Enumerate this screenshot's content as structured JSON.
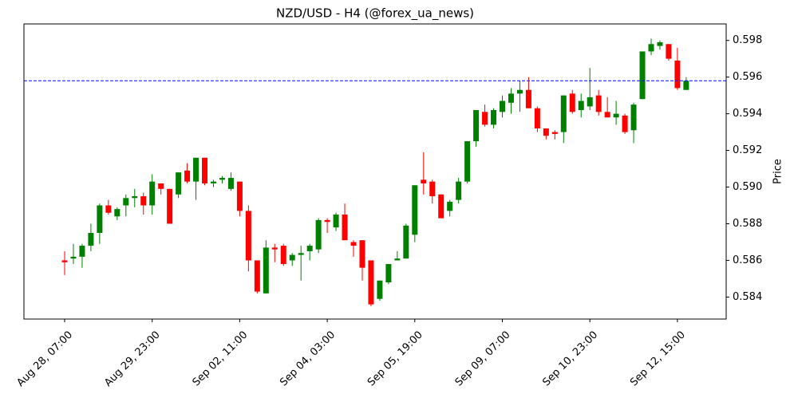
{
  "chart_data": {
    "type": "candlestick",
    "title": "NZD/USD - H4 (@forex_ua_news)",
    "y_label": "Price",
    "categories": [
      "Aug 28, 07:00",
      null,
      null,
      null,
      null,
      null,
      null,
      null,
      null,
      null,
      "Aug 29, 23:00",
      null,
      null,
      null,
      null,
      null,
      null,
      null,
      null,
      null,
      "Sep 02, 11:00",
      null,
      null,
      null,
      null,
      null,
      null,
      null,
      null,
      null,
      "Sep 04, 03:00",
      null,
      null,
      null,
      null,
      null,
      null,
      null,
      null,
      null,
      "Sep 05, 19:00",
      null,
      null,
      null,
      null,
      null,
      null,
      null,
      null,
      null,
      "Sep 09, 07:00",
      null,
      null,
      null,
      null,
      null,
      null,
      null,
      null,
      null,
      "Sep 10, 23:00",
      null,
      null,
      null,
      null,
      null,
      null,
      null,
      null,
      null,
      "Sep 12, 15:00",
      null
    ],
    "open": [
      0.586,
      0.5861,
      0.5862,
      0.5868,
      0.5875,
      0.589,
      0.5884,
      0.589,
      0.5894,
      0.5895,
      0.589,
      0.5902,
      0.5899,
      0.5896,
      0.5909,
      0.5903,
      0.5916,
      0.5902,
      0.5904,
      0.5899,
      0.5903,
      0.5887,
      0.586,
      0.5842,
      0.5867,
      0.5868,
      0.586,
      0.5863,
      0.5865,
      0.5866,
      0.5882,
      0.5878,
      0.5885,
      0.587,
      0.5871,
      0.586,
      0.5839,
      0.5848,
      0.586,
      0.5861,
      0.5874,
      0.5904,
      0.5903,
      0.5896,
      0.5887,
      0.5893,
      0.5903,
      0.5925,
      0.5941,
      0.5934,
      0.5941,
      0.5946,
      0.5951,
      0.5953,
      0.5943,
      0.5932,
      0.593,
      0.593,
      0.5951,
      0.5942,
      0.5944,
      0.595,
      0.5941,
      0.5938,
      0.5939,
      0.5931,
      0.5948,
      0.5974,
      0.5977,
      0.5978,
      0.5969,
      0.5953
    ],
    "high": [
      0.5865,
      0.5869,
      0.5869,
      0.588,
      0.5891,
      0.5893,
      0.5889,
      0.5896,
      0.5899,
      0.5897,
      0.5907,
      0.5902,
      0.5899,
      0.5908,
      0.5913,
      0.5916,
      0.5916,
      0.5904,
      0.5906,
      0.5908,
      0.5903,
      0.589,
      0.586,
      0.5871,
      0.5869,
      0.5869,
      0.5864,
      0.5868,
      0.5869,
      0.5883,
      0.5883,
      0.5886,
      0.5891,
      0.5871,
      0.5871,
      0.586,
      0.5849,
      0.5858,
      0.5865,
      0.588,
      0.5901,
      0.5919,
      0.5904,
      0.5896,
      0.5893,
      0.5905,
      0.5925,
      0.5942,
      0.5945,
      0.5943,
      0.595,
      0.5954,
      0.5958,
      0.596,
      0.5944,
      0.5932,
      0.5931,
      0.595,
      0.5953,
      0.5951,
      0.5965,
      0.5953,
      0.5949,
      0.5947,
      0.594,
      0.5946,
      0.5974,
      0.5981,
      0.598,
      0.5978,
      0.5976,
      0.596
    ],
    "low": [
      0.5852,
      0.5858,
      0.5856,
      0.5865,
      0.5869,
      0.5885,
      0.5882,
      0.5884,
      0.5889,
      0.5885,
      0.5885,
      0.5896,
      0.588,
      0.5894,
      0.5902,
      0.5893,
      0.5901,
      0.59,
      0.5902,
      0.5898,
      0.5884,
      0.5854,
      0.5842,
      0.5842,
      0.5859,
      0.5857,
      0.5857,
      0.5849,
      0.586,
      0.5864,
      0.5875,
      0.5876,
      0.5871,
      0.5862,
      0.5849,
      0.5835,
      0.5838,
      0.5847,
      0.586,
      0.5861,
      0.587,
      0.5896,
      0.5891,
      0.5883,
      0.5884,
      0.5891,
      0.5902,
      0.5922,
      0.5933,
      0.5932,
      0.5938,
      0.594,
      0.5941,
      0.5943,
      0.593,
      0.5926,
      0.5926,
      0.5924,
      0.594,
      0.5938,
      0.5942,
      0.5939,
      0.5938,
      0.5934,
      0.5929,
      0.5924,
      0.5948,
      0.5972,
      0.5975,
      0.5969,
      0.5953,
      0.5953
    ],
    "close": [
      0.5859,
      0.5862,
      0.5868,
      0.5875,
      0.589,
      0.5886,
      0.5888,
      0.5894,
      0.5895,
      0.589,
      0.5903,
      0.5899,
      0.588,
      0.5908,
      0.5903,
      0.5916,
      0.5902,
      0.5903,
      0.5905,
      0.5905,
      0.5887,
      0.586,
      0.5843,
      0.5867,
      0.5866,
      0.5858,
      0.5863,
      0.5864,
      0.5868,
      0.5882,
      0.5881,
      0.5885,
      0.5871,
      0.5868,
      0.5856,
      0.5836,
      0.5849,
      0.5858,
      0.5861,
      0.5879,
      0.5901,
      0.5902,
      0.5895,
      0.5883,
      0.5892,
      0.5903,
      0.5925,
      0.5942,
      0.5934,
      0.5942,
      0.5947,
      0.5951,
      0.5953,
      0.5943,
      0.5932,
      0.5928,
      0.5929,
      0.595,
      0.5941,
      0.5947,
      0.5949,
      0.5941,
      0.5938,
      0.594,
      0.593,
      0.5945,
      0.5974,
      0.5978,
      0.5979,
      0.597,
      0.5954,
      0.5958
    ],
    "up_color": "green",
    "down_color": "red",
    "hline": {
      "value": 0.5958,
      "color": "blue",
      "style": "dashed"
    },
    "ylim": [
      0.5828,
      0.5989
    ],
    "yticks": [
      {
        "value": 0.584,
        "label": "0.584"
      },
      {
        "value": 0.586,
        "label": "0.586"
      },
      {
        "value": 0.588,
        "label": "0.588"
      },
      {
        "value": 0.59,
        "label": "0.590"
      },
      {
        "value": 0.592,
        "label": "0.592"
      },
      {
        "value": 0.594,
        "label": "0.594"
      },
      {
        "value": 0.596,
        "label": "0.596"
      },
      {
        "value": 0.598,
        "label": "0.598"
      }
    ]
  }
}
